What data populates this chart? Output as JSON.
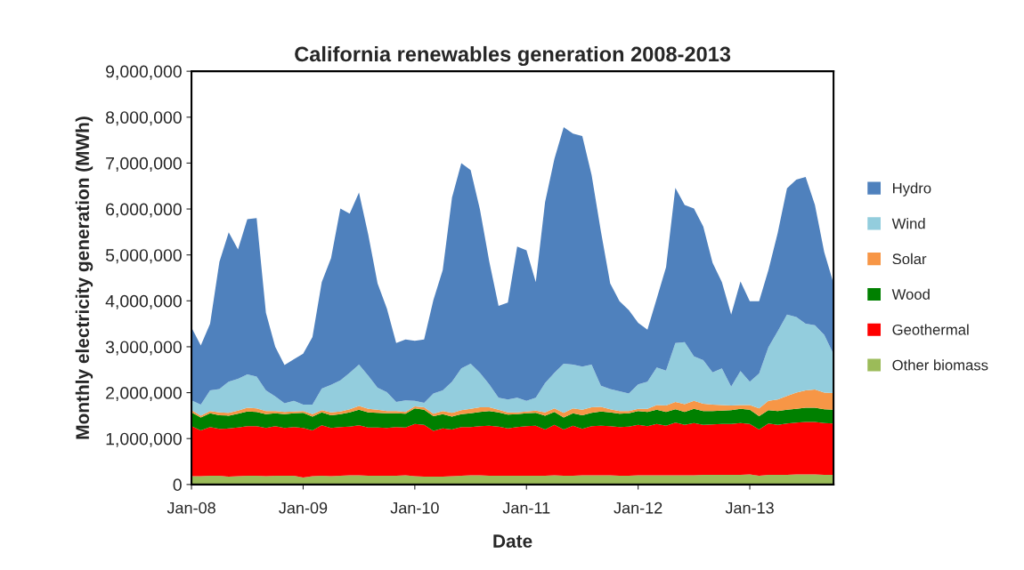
{
  "chart_data": {
    "type": "area",
    "stacked": true,
    "title": "California renewables generation 2008-2013",
    "xlabel": "Date",
    "ylabel": "Monthly electricity generation (MWh)",
    "categories": [
      "Jan-08",
      null,
      null,
      null,
      null,
      null,
      null,
      null,
      null,
      null,
      null,
      null,
      "Jan-09",
      null,
      null,
      null,
      null,
      null,
      null,
      null,
      null,
      null,
      null,
      null,
      "Jan-10",
      null,
      null,
      null,
      null,
      null,
      null,
      null,
      null,
      null,
      null,
      null,
      "Jan-11",
      null,
      null,
      null,
      null,
      null,
      null,
      null,
      null,
      null,
      null,
      null,
      "Jan-12",
      null,
      null,
      null,
      null,
      null,
      null,
      null,
      null,
      null,
      null,
      null,
      "Jan-13",
      null,
      null,
      null,
      null,
      null,
      null,
      null,
      null,
      null
    ],
    "series": [
      {
        "name": "Other biomass",
        "color": "#9bbb59",
        "values": [
          180000,
          180000,
          190000,
          190000,
          170000,
          180000,
          190000,
          190000,
          180000,
          190000,
          190000,
          190000,
          150000,
          180000,
          190000,
          180000,
          190000,
          200000,
          200000,
          190000,
          190000,
          190000,
          190000,
          200000,
          180000,
          170000,
          170000,
          170000,
          180000,
          190000,
          200000,
          200000,
          190000,
          190000,
          190000,
          190000,
          190000,
          190000,
          190000,
          200000,
          190000,
          190000,
          200000,
          200000,
          200000,
          200000,
          190000,
          190000,
          200000,
          200000,
          200000,
          200000,
          200000,
          200000,
          200000,
          210000,
          210000,
          210000,
          210000,
          210000,
          220000,
          190000,
          210000,
          210000,
          210000,
          220000,
          220000,
          220000,
          210000,
          210000
        ]
      },
      {
        "name": "Geothermal",
        "color": "#ff0000",
        "values": [
          1090000,
          1000000,
          1060000,
          1020000,
          1050000,
          1060000,
          1080000,
          1080000,
          1050000,
          1080000,
          1040000,
          1060000,
          1080000,
          1000000,
          1100000,
          1050000,
          1060000,
          1060000,
          1090000,
          1050000,
          1050000,
          1040000,
          1060000,
          1040000,
          1140000,
          1130000,
          1000000,
          1050000,
          1020000,
          1060000,
          1050000,
          1070000,
          1090000,
          1070000,
          1030000,
          1060000,
          1080000,
          1090000,
          1010000,
          1100000,
          1010000,
          1090000,
          1010000,
          1070000,
          1080000,
          1070000,
          1060000,
          1070000,
          1100000,
          1070000,
          1120000,
          1080000,
          1150000,
          1100000,
          1140000,
          1090000,
          1100000,
          1110000,
          1110000,
          1130000,
          1100000,
          1010000,
          1120000,
          1090000,
          1120000,
          1130000,
          1140000,
          1140000,
          1130000,
          1120000
        ]
      },
      {
        "name": "Wood",
        "color": "#008000",
        "values": [
          300000,
          280000,
          300000,
          300000,
          280000,
          300000,
          320000,
          310000,
          300000,
          280000,
          300000,
          300000,
          330000,
          300000,
          280000,
          280000,
          280000,
          310000,
          340000,
          330000,
          320000,
          320000,
          300000,
          300000,
          340000,
          330000,
          320000,
          310000,
          280000,
          280000,
          300000,
          310000,
          320000,
          310000,
          300000,
          280000,
          280000,
          280000,
          300000,
          280000,
          260000,
          270000,
          300000,
          290000,
          310000,
          300000,
          290000,
          290000,
          300000,
          310000,
          310000,
          300000,
          290000,
          280000,
          310000,
          300000,
          290000,
          290000,
          300000,
          310000,
          310000,
          290000,
          290000,
          300000,
          300000,
          300000,
          310000,
          310000,
          300000,
          300000
        ]
      },
      {
        "name": "Solar",
        "color": "#f79646",
        "values": [
          50000,
          40000,
          50000,
          60000,
          60000,
          70000,
          80000,
          80000,
          70000,
          50000,
          50000,
          40000,
          40000,
          50000,
          50000,
          60000,
          60000,
          70000,
          80000,
          80000,
          70000,
          50000,
          50000,
          40000,
          40000,
          50000,
          50000,
          70000,
          80000,
          90000,
          100000,
          100000,
          80000,
          60000,
          50000,
          40000,
          40000,
          50000,
          70000,
          80000,
          100000,
          110000,
          120000,
          120000,
          100000,
          70000,
          60000,
          50000,
          50000,
          70000,
          100000,
          140000,
          160000,
          170000,
          170000,
          160000,
          140000,
          120000,
          100000,
          80000,
          100000,
          170000,
          200000,
          250000,
          300000,
          350000,
          380000,
          400000,
          360000,
          360000
        ]
      },
      {
        "name": "Wind",
        "color": "#93cddd",
        "values": [
          210000,
          240000,
          450000,
          510000,
          680000,
          690000,
          730000,
          690000,
          450000,
          320000,
          190000,
          230000,
          140000,
          210000,
          470000,
          600000,
          680000,
          790000,
          900000,
          720000,
          480000,
          410000,
          200000,
          250000,
          120000,
          100000,
          440000,
          450000,
          680000,
          910000,
          980000,
          750000,
          500000,
          260000,
          280000,
          320000,
          230000,
          280000,
          640000,
          770000,
          1070000,
          950000,
          940000,
          930000,
          460000,
          440000,
          430000,
          380000,
          530000,
          590000,
          820000,
          760000,
          1280000,
          1350000,
          970000,
          950000,
          700000,
          800000,
          410000,
          740000,
          510000,
          760000,
          1170000,
          1490000,
          1770000,
          1650000,
          1450000,
          1400000,
          1260000,
          850000
        ]
      },
      {
        "name": "Hydro",
        "color": "#4f81bd",
        "values": [
          1590000,
          1290000,
          1450000,
          2770000,
          3250000,
          2820000,
          3380000,
          3450000,
          1690000,
          1080000,
          830000,
          910000,
          1110000,
          1470000,
          2320000,
          2760000,
          3740000,
          3470000,
          3750000,
          3070000,
          2270000,
          1820000,
          1280000,
          1330000,
          1310000,
          1380000,
          2040000,
          2620000,
          4010000,
          4470000,
          4220000,
          3560000,
          2680000,
          2000000,
          2110000,
          3290000,
          3280000,
          2520000,
          3940000,
          4660000,
          5150000,
          5030000,
          5020000,
          4130000,
          3360000,
          2300000,
          1960000,
          1820000,
          1340000,
          1130000,
          1500000,
          2250000,
          3380000,
          2990000,
          3220000,
          2910000,
          2390000,
          1880000,
          1570000,
          1950000,
          1750000,
          1570000,
          1680000,
          2140000,
          2750000,
          2990000,
          3200000,
          2620000,
          1800000,
          1540000
        ]
      }
    ],
    "ylim": [
      0,
      9000000
    ],
    "yticks": [
      0,
      {
        "value": 1000000,
        "label": "1,000,000"
      },
      {
        "value": 2000000,
        "label": "2,000,000"
      },
      {
        "value": 3000000,
        "label": "3,000,000"
      },
      {
        "value": 4000000,
        "label": "4,000,000"
      },
      {
        "value": 5000000,
        "label": "5,000,000"
      },
      {
        "value": 6000000,
        "label": "6,000,000"
      },
      {
        "value": 7000000,
        "label": "7,000,000"
      },
      {
        "value": 8000000,
        "label": "8,000,000"
      },
      {
        "value": 9000000,
        "label": "9,000,000"
      }
    ],
    "legend": "right",
    "grid": false
  }
}
